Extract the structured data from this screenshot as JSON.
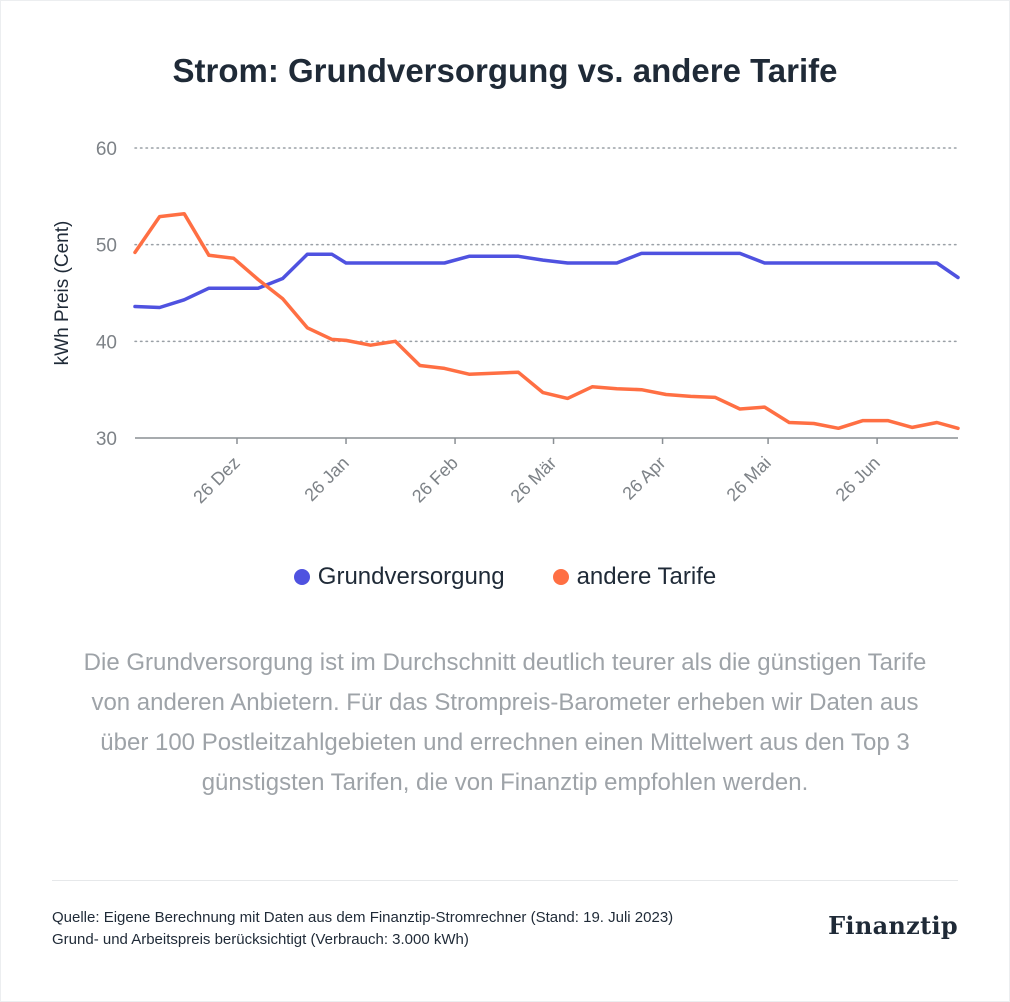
{
  "title": "Strom: Grundversorgung vs. andere Tarife",
  "legend": [
    {
      "label": "Grundversorgung",
      "color": "#4f52e0"
    },
    {
      "label": "andere Tarife",
      "color": "#ff6f43"
    }
  ],
  "description": "Die Grundversorgung ist im Durchschnitt deutlich teurer als die günstigen Tarife von anderen Anbietern. Für das Strompreis-Barometer erheben wir Daten aus über 100 Postleitzahlgebieten und errechnen einen Mittelwert aus den Top 3 günstigsten Tarifen, die von Finanztip empfohlen werden.",
  "footer": {
    "source_line1": "Quelle: Eigene Berechnung mit Daten aus dem Finanztip-Stromrechner (Stand: 19. Juli 2023)",
    "source_line2": "Grund- und Arbeitspreis berücksichtigt (Verbrauch: 3.000 kWh)",
    "brand": "Finanztip"
  },
  "chart_data": {
    "type": "line",
    "title": "Strom: Grundversorgung vs. andere Tarife",
    "xlabel": "",
    "ylabel": "kWh Preis (Cent)",
    "ylim": [
      30,
      60
    ],
    "yticks": [
      30,
      40,
      50,
      60
    ],
    "xlim": [
      "2022-11-27",
      "2023-07-19"
    ],
    "xticks": [
      {
        "date": "2022-12-26",
        "label": "26 Dez"
      },
      {
        "date": "2023-01-26",
        "label": "26 Jan"
      },
      {
        "date": "2023-02-26",
        "label": "26 Feb"
      },
      {
        "date": "2023-03-26",
        "label": "26 Mär"
      },
      {
        "date": "2023-04-26",
        "label": "26 Apr"
      },
      {
        "date": "2023-05-26",
        "label": "26 Mai"
      },
      {
        "date": "2023-06-26",
        "label": "26 Jun"
      }
    ],
    "grid": true,
    "legend_position": "bottom",
    "series": [
      {
        "name": "Grundversorgung",
        "color": "#4f52e0",
        "points": [
          [
            "2022-11-27",
            43.6
          ],
          [
            "2022-12-04",
            43.5
          ],
          [
            "2022-12-11",
            44.3
          ],
          [
            "2022-12-18",
            45.5
          ],
          [
            "2022-12-25",
            45.5
          ],
          [
            "2023-01-01",
            45.5
          ],
          [
            "2023-01-08",
            46.5
          ],
          [
            "2023-01-15",
            49.0
          ],
          [
            "2023-01-22",
            49.0
          ],
          [
            "2023-01-26",
            48.1
          ],
          [
            "2023-02-02",
            48.1
          ],
          [
            "2023-02-09",
            48.1
          ],
          [
            "2023-02-16",
            48.1
          ],
          [
            "2023-02-23",
            48.1
          ],
          [
            "2023-03-02",
            48.8
          ],
          [
            "2023-03-09",
            48.8
          ],
          [
            "2023-03-16",
            48.8
          ],
          [
            "2023-03-23",
            48.4
          ],
          [
            "2023-03-30",
            48.1
          ],
          [
            "2023-04-06",
            48.1
          ],
          [
            "2023-04-13",
            48.1
          ],
          [
            "2023-04-20",
            49.1
          ],
          [
            "2023-04-27",
            49.1
          ],
          [
            "2023-05-04",
            49.1
          ],
          [
            "2023-05-11",
            49.1
          ],
          [
            "2023-05-18",
            49.1
          ],
          [
            "2023-05-25",
            48.1
          ],
          [
            "2023-06-01",
            48.1
          ],
          [
            "2023-06-08",
            48.1
          ],
          [
            "2023-06-15",
            48.1
          ],
          [
            "2023-06-22",
            48.1
          ],
          [
            "2023-06-29",
            48.1
          ],
          [
            "2023-07-06",
            48.1
          ],
          [
            "2023-07-13",
            48.1
          ],
          [
            "2023-07-19",
            46.6
          ]
        ]
      },
      {
        "name": "andere Tarife",
        "color": "#ff6f43",
        "points": [
          [
            "2022-11-27",
            49.2
          ],
          [
            "2022-12-04",
            52.9
          ],
          [
            "2022-12-11",
            53.2
          ],
          [
            "2022-12-18",
            48.9
          ],
          [
            "2022-12-25",
            48.6
          ],
          [
            "2023-01-01",
            46.4
          ],
          [
            "2023-01-08",
            44.4
          ],
          [
            "2023-01-15",
            41.4
          ],
          [
            "2023-01-22",
            40.2
          ],
          [
            "2023-01-26",
            40.1
          ],
          [
            "2023-02-02",
            39.6
          ],
          [
            "2023-02-09",
            40.0
          ],
          [
            "2023-02-16",
            37.5
          ],
          [
            "2023-02-23",
            37.2
          ],
          [
            "2023-03-02",
            36.6
          ],
          [
            "2023-03-09",
            36.7
          ],
          [
            "2023-03-16",
            36.8
          ],
          [
            "2023-03-23",
            34.7
          ],
          [
            "2023-03-30",
            34.1
          ],
          [
            "2023-04-06",
            35.3
          ],
          [
            "2023-04-13",
            35.1
          ],
          [
            "2023-04-20",
            35.0
          ],
          [
            "2023-04-27",
            34.5
          ],
          [
            "2023-05-04",
            34.3
          ],
          [
            "2023-05-11",
            34.2
          ],
          [
            "2023-05-18",
            33.0
          ],
          [
            "2023-05-25",
            33.2
          ],
          [
            "2023-06-01",
            31.6
          ],
          [
            "2023-06-08",
            31.5
          ],
          [
            "2023-06-15",
            31.0
          ],
          [
            "2023-06-22",
            31.8
          ],
          [
            "2023-06-29",
            31.8
          ],
          [
            "2023-07-06",
            31.1
          ],
          [
            "2023-07-13",
            31.6
          ],
          [
            "2023-07-19",
            31.0
          ]
        ]
      }
    ]
  }
}
